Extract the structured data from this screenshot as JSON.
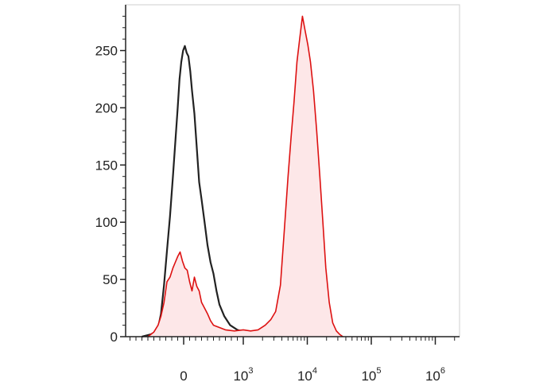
{
  "chart_data": {
    "type": "area",
    "title": "",
    "xlabel": "",
    "ylabel": "",
    "x_scale": "biexponential",
    "x_ticks": [
      {
        "value": 0,
        "base": "0",
        "exp": ""
      },
      {
        "value": 1000,
        "base": "10",
        "exp": "3"
      },
      {
        "value": 10000,
        "base": "10",
        "exp": "4"
      },
      {
        "value": 100000,
        "base": "10",
        "exp": "5"
      },
      {
        "value": 1000000,
        "base": "10",
        "exp": "6"
      }
    ],
    "ylim": [
      0,
      290
    ],
    "y_ticks": [
      {
        "value": 0,
        "label": "0"
      },
      {
        "value": 50,
        "label": "50"
      },
      {
        "value": 100,
        "label": "100"
      },
      {
        "value": 150,
        "label": "150"
      },
      {
        "value": 200,
        "label": "200"
      },
      {
        "value": 250,
        "label": "250"
      }
    ],
    "grid": false,
    "legend": "none",
    "series": [
      {
        "color": "#222222",
        "fill": "none",
        "points": [
          [
            -700,
            0
          ],
          [
            -550,
            2
          ],
          [
            -480,
            4
          ],
          [
            -420,
            10
          ],
          [
            -380,
            20
          ],
          [
            -330,
            45
          ],
          [
            -280,
            75
          ],
          [
            -230,
            105
          ],
          [
            -180,
            140
          ],
          [
            -140,
            170
          ],
          [
            -100,
            200
          ],
          [
            -70,
            225
          ],
          [
            -40,
            240
          ],
          [
            -10,
            250
          ],
          [
            20,
            254
          ],
          [
            50,
            248
          ],
          [
            80,
            245
          ],
          [
            110,
            232
          ],
          [
            140,
            215
          ],
          [
            180,
            195
          ],
          [
            220,
            165
          ],
          [
            260,
            135
          ],
          [
            300,
            120
          ],
          [
            350,
            100
          ],
          [
            400,
            80
          ],
          [
            450,
            65
          ],
          [
            500,
            55
          ],
          [
            550,
            40
          ],
          [
            600,
            28
          ],
          [
            680,
            18
          ],
          [
            780,
            10
          ],
          [
            900,
            6
          ],
          [
            1050,
            4
          ],
          [
            1250,
            3
          ],
          [
            1500,
            2
          ],
          [
            1900,
            1
          ],
          [
            2500,
            1
          ],
          [
            3200,
            0
          ]
        ]
      },
      {
        "color": "#dd1111",
        "fill": "#fde7e8",
        "points": [
          [
            -600,
            0
          ],
          [
            -500,
            4
          ],
          [
            -430,
            10
          ],
          [
            -380,
            18
          ],
          [
            -330,
            30
          ],
          [
            -280,
            48
          ],
          [
            -230,
            52
          ],
          [
            -180,
            60
          ],
          [
            -140,
            65
          ],
          [
            -100,
            70
          ],
          [
            -60,
            74
          ],
          [
            -20,
            66
          ],
          [
            20,
            60
          ],
          [
            60,
            58
          ],
          [
            100,
            48
          ],
          [
            140,
            40
          ],
          [
            180,
            52
          ],
          [
            220,
            44
          ],
          [
            260,
            40
          ],
          [
            300,
            30
          ],
          [
            350,
            25
          ],
          [
            400,
            20
          ],
          [
            450,
            14
          ],
          [
            500,
            10
          ],
          [
            600,
            8
          ],
          [
            700,
            6
          ],
          [
            850,
            5
          ],
          [
            1000,
            6
          ],
          [
            1300,
            5
          ],
          [
            1700,
            6
          ],
          [
            2200,
            10
          ],
          [
            2700,
            15
          ],
          [
            3200,
            22
          ],
          [
            3800,
            45
          ],
          [
            4400,
            95
          ],
          [
            5000,
            140
          ],
          [
            5600,
            175
          ],
          [
            6200,
            205
          ],
          [
            6900,
            240
          ],
          [
            7600,
            260
          ],
          [
            8400,
            280
          ],
          [
            9200,
            268
          ],
          [
            10200,
            255
          ],
          [
            11200,
            240
          ],
          [
            12500,
            215
          ],
          [
            14000,
            180
          ],
          [
            15700,
            140
          ],
          [
            17500,
            100
          ],
          [
            19500,
            60
          ],
          [
            22000,
            30
          ],
          [
            25000,
            12
          ],
          [
            28500,
            5
          ],
          [
            32000,
            2
          ],
          [
            36000,
            0
          ]
        ]
      }
    ]
  }
}
